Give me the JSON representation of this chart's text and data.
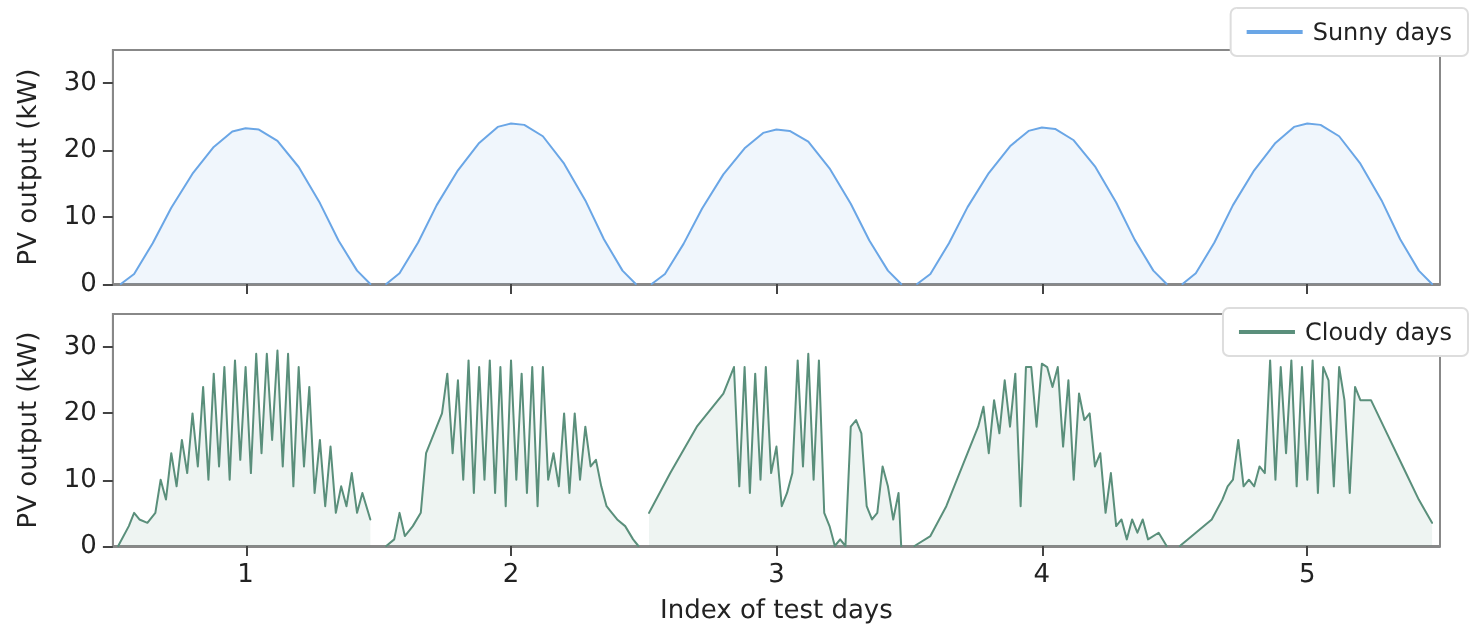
{
  "chart_data": [
    {
      "type": "area",
      "ylabel": "PV output (kW)",
      "xlim": [
        0.5,
        5.5
      ],
      "xticks": [
        1,
        2,
        3,
        4,
        5
      ],
      "ylim": [
        0,
        35
      ],
      "yticks": [
        0,
        10,
        20,
        30
      ],
      "grid": false,
      "legend": "top right",
      "marker": "none",
      "line_style": "solid",
      "tick_labels": "y",
      "series": [
        {
          "name": "Sunny days",
          "color": "#6aa6e6",
          "x": [
            0.53,
            0.58,
            0.65,
            0.72,
            0.8,
            0.88,
            0.95,
            1,
            1.05,
            1.12,
            1.2,
            1.28,
            1.35,
            1.42,
            1.47,
            1.5,
            1.53,
            1.58,
            1.65,
            1.72,
            1.8,
            1.88,
            1.95,
            2,
            2.05,
            2.12,
            2.2,
            2.28,
            2.35,
            2.42,
            2.47,
            2.5,
            2.53,
            2.58,
            2.65,
            2.72,
            2.8,
            2.88,
            2.95,
            3,
            3.05,
            3.12,
            3.2,
            3.28,
            3.35,
            3.42,
            3.47,
            3.5,
            3.53,
            3.58,
            3.65,
            3.72,
            3.8,
            3.88,
            3.95,
            4,
            4.05,
            4.12,
            4.2,
            4.28,
            4.35,
            4.42,
            4.47,
            4.5,
            4.53,
            4.58,
            4.65,
            4.72,
            4.8,
            4.88,
            4.95,
            5,
            5.05,
            5.12,
            5.2,
            5.28,
            5.35,
            5.42,
            5.47
          ],
          "values": [
            0,
            1.5,
            6.1,
            11.4,
            16.5,
            20.5,
            22.8,
            23.3,
            23.1,
            21.4,
            17.5,
            12.1,
            6.5,
            2.0,
            0,
            null,
            0,
            1.6,
            6.2,
            11.8,
            17.0,
            21.1,
            23.5,
            24,
            23.8,
            22.1,
            18.0,
            12.5,
            6.7,
            2.0,
            0,
            null,
            0,
            1.5,
            6.0,
            11.3,
            16.4,
            20.3,
            22.6,
            23.1,
            22.9,
            21.3,
            17.3,
            12.0,
            6.5,
            2.0,
            0,
            null,
            0,
            1.5,
            6.1,
            11.5,
            16.6,
            20.6,
            22.9,
            23.4,
            23.2,
            21.5,
            17.6,
            12.2,
            6.6,
            2.0,
            0,
            null,
            0,
            1.6,
            6.2,
            11.8,
            17.0,
            21.1,
            23.5,
            24,
            23.8,
            22.1,
            18.0,
            12.5,
            6.7,
            2.0,
            0
          ]
        }
      ]
    },
    {
      "type": "area",
      "xlabel": "Index of test days",
      "ylabel": "PV output (kW)",
      "xlim": [
        0.5,
        5.5
      ],
      "xticks": [
        1,
        2,
        3,
        4,
        5
      ],
      "ylim": [
        0,
        35
      ],
      "yticks": [
        0,
        10,
        20,
        30
      ],
      "grid": false,
      "legend": "top right",
      "marker": "none",
      "line_style": "solid",
      "series": [
        {
          "name": "Cloudy days",
          "color": "#5a8f7b",
          "x": [
            0.52,
            0.56,
            0.58,
            0.6,
            0.63,
            0.66,
            0.68,
            0.7,
            0.72,
            0.74,
            0.76,
            0.78,
            0.8,
            0.82,
            0.84,
            0.86,
            0.88,
            0.9,
            0.92,
            0.94,
            0.96,
            0.98,
            1,
            1.02,
            1.04,
            1.06,
            1.08,
            1.1,
            1.12,
            1.14,
            1.16,
            1.18,
            1.2,
            1.22,
            1.24,
            1.26,
            1.28,
            1.3,
            1.32,
            1.34,
            1.36,
            1.38,
            1.4,
            1.42,
            1.44,
            1.47,
            1.5,
            1.53,
            1.56,
            1.58,
            1.6,
            1.63,
            1.66,
            1.68,
            1.7,
            1.72,
            1.74,
            1.76,
            1.78,
            1.8,
            1.82,
            1.84,
            1.86,
            1.88,
            1.9,
            1.92,
            1.94,
            1.96,
            1.98,
            2,
            2.02,
            2.04,
            2.06,
            2.08,
            2.1,
            2.12,
            2.14,
            2.16,
            2.18,
            2.2,
            2.22,
            2.24,
            2.26,
            2.28,
            2.3,
            2.32,
            2.34,
            2.36,
            2.38,
            2.4,
            2.43,
            2.46,
            2.48,
            2.5,
            2.52,
            2.6,
            2.7,
            2.8,
            2.82,
            2.84,
            2.86,
            2.88,
            2.9,
            2.92,
            2.94,
            2.96,
            2.98,
            3,
            3.02,
            3.04,
            3.06,
            3.08,
            3.1,
            3.12,
            3.14,
            3.16,
            3.18,
            3.2,
            3.22,
            3.24,
            3.26,
            3.28,
            3.3,
            3.32,
            3.34,
            3.36,
            3.38,
            3.4,
            3.42,
            3.44,
            3.46,
            3.47,
            3.5,
            3.52,
            3.58,
            3.64,
            3.7,
            3.76,
            3.78,
            3.8,
            3.82,
            3.84,
            3.86,
            3.88,
            3.9,
            3.92,
            3.94,
            3.96,
            3.98,
            4,
            4.02,
            4.04,
            4.06,
            4.08,
            4.1,
            4.12,
            4.14,
            4.16,
            4.18,
            4.2,
            4.22,
            4.24,
            4.26,
            4.28,
            4.3,
            4.32,
            4.34,
            4.36,
            4.38,
            4.4,
            4.44,
            4.47,
            4.5,
            4.52,
            4.58,
            4.64,
            4.68,
            4.7,
            4.72,
            4.74,
            4.76,
            4.78,
            4.8,
            4.82,
            4.84,
            4.86,
            4.88,
            4.9,
            4.92,
            4.94,
            4.96,
            4.98,
            5,
            5.02,
            5.04,
            5.06,
            5.08,
            5.1,
            5.12,
            5.14,
            5.16,
            5.18,
            5.2,
            5.24,
            5.3,
            5.36,
            5.42,
            5.47
          ],
          "values": [
            0,
            3,
            5,
            4,
            3.5,
            5,
            10,
            7,
            14,
            9,
            16,
            11,
            20,
            12,
            24,
            10,
            26,
            12,
            27,
            10,
            28,
            13,
            27,
            11,
            29,
            14,
            29,
            16,
            29.5,
            12,
            29,
            9,
            27,
            12,
            24,
            8,
            16,
            6,
            15,
            5,
            9,
            6,
            11,
            5,
            8,
            4,
            null,
            0,
            1,
            5,
            1.5,
            3,
            5,
            14,
            16,
            18,
            20,
            26,
            14,
            25,
            10,
            28,
            8,
            27,
            10,
            28,
            8,
            27,
            6,
            28,
            10,
            26,
            8,
            27,
            6,
            27,
            10,
            14,
            9,
            20,
            8,
            20,
            10,
            18,
            12,
            13,
            9,
            6,
            5,
            4,
            3,
            1,
            0,
            null,
            5,
            11,
            18,
            23,
            25,
            27,
            9,
            27,
            8,
            26,
            10,
            27,
            11,
            15,
            6,
            8,
            11,
            28,
            12,
            29,
            10,
            28,
            5,
            3,
            0,
            1,
            0,
            18,
            19,
            17,
            6,
            4,
            5,
            12,
            9,
            4,
            8,
            0,
            null,
            0,
            1.5,
            6,
            12,
            18,
            21,
            14,
            22,
            17,
            25,
            18,
            26,
            6,
            27,
            27,
            18,
            27.5,
            27,
            24,
            27,
            15,
            25,
            10,
            23,
            19,
            20,
            12,
            14,
            5,
            11,
            3,
            4,
            1,
            4,
            2,
            4,
            1,
            2,
            0,
            null,
            0,
            2,
            4,
            7,
            9,
            10,
            16,
            9,
            10,
            9,
            12,
            11,
            28,
            10,
            27,
            14,
            28,
            9,
            27,
            10,
            28,
            8,
            27,
            25,
            9,
            27,
            22,
            8,
            24,
            22,
            22,
            17,
            12,
            7,
            3.5
          ]
        }
      ]
    }
  ]
}
